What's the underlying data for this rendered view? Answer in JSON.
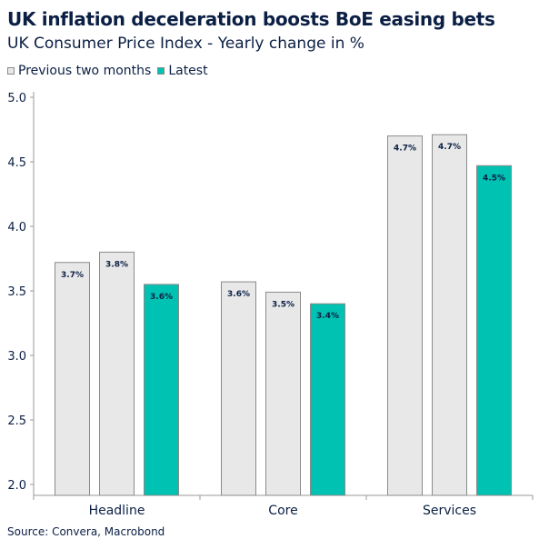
{
  "chart_data": {
    "type": "bar",
    "title": "UK inflation deceleration boosts BoE easing bets",
    "subtitle": "UK Consumer Price Index - Yearly change in %",
    "categories": [
      "Headline",
      "Core",
      "Services"
    ],
    "series": [
      {
        "name": "Previous two months",
        "values": [
          3.72,
          3.57,
          4.7
        ],
        "labels": [
          "3.7%",
          "3.6%",
          "4.7%"
        ]
      },
      {
        "name": "Previous two months",
        "values": [
          3.8,
          3.49,
          4.71
        ],
        "labels": [
          "3.8%",
          "3.5%",
          "4.7%"
        ]
      },
      {
        "name": "Latest",
        "values": [
          3.55,
          3.4,
          4.47
        ],
        "labels": [
          "3.6%",
          "3.4%",
          "4.5%"
        ]
      }
    ],
    "legend": [
      {
        "name": "Previous two months",
        "color": "#e8e8e8"
      },
      {
        "name": "Latest",
        "color": "#00c2b2"
      }
    ],
    "yticks": [
      "2.0",
      "2.5",
      "3.0",
      "3.5",
      "4.0",
      "4.5",
      "5.0"
    ],
    "ylim": [
      2.0,
      5.0
    ],
    "legend_position": "top-left",
    "grid": false,
    "colors": {
      "previous": "#e8e8e8",
      "latest": "#00c2b2",
      "border": "#8a8a8a",
      "text": "#0b1f44"
    },
    "source": "Source: Convera, Macrobond"
  }
}
